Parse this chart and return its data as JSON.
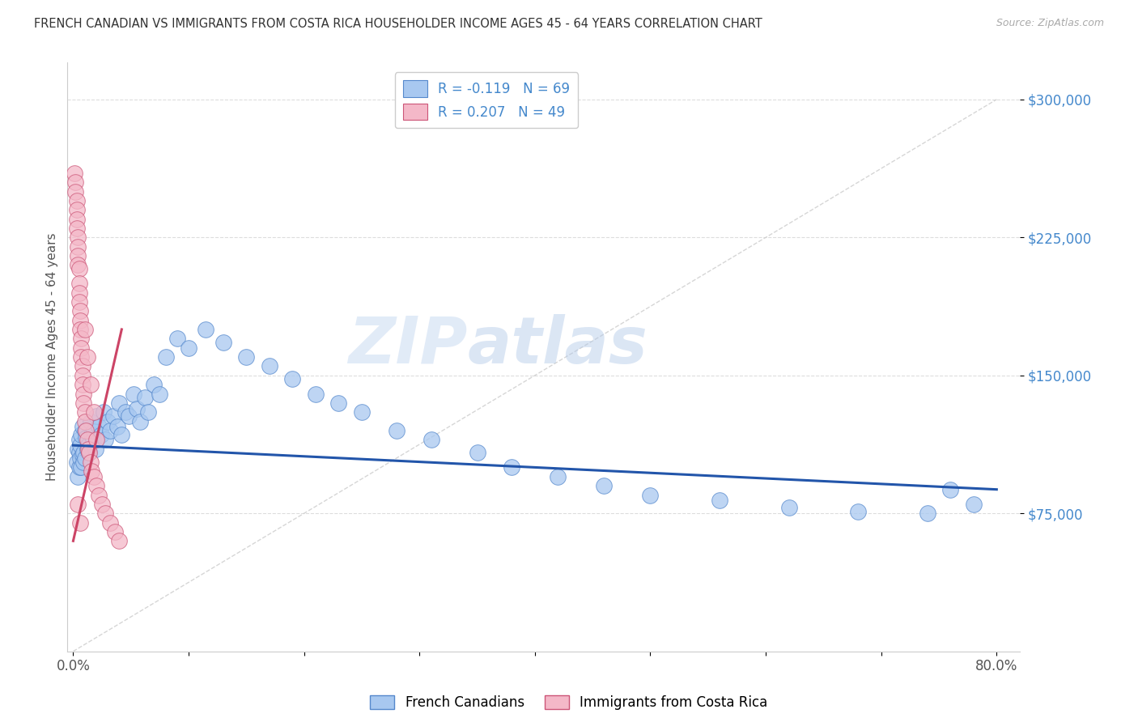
{
  "title": "FRENCH CANADIAN VS IMMIGRANTS FROM COSTA RICA HOUSEHOLDER INCOME AGES 45 - 64 YEARS CORRELATION CHART",
  "source": "Source: ZipAtlas.com",
  "ylabel": "Householder Income Ages 45 - 64 years",
  "y_tick_labels": [
    "$75,000",
    "$150,000",
    "$225,000",
    "$300,000"
  ],
  "y_tick_values": [
    75000,
    150000,
    225000,
    300000
  ],
  "legend_blue_r": "R = -0.119",
  "legend_blue_n": "N = 69",
  "legend_pink_r": "R = 0.207",
  "legend_pink_n": "N = 49",
  "legend_blue_label": "French Canadians",
  "legend_pink_label": "Immigrants from Costa Rica",
  "watermark_zip": "ZIP",
  "watermark_atlas": "atlas",
  "blue_color": "#a8c8f0",
  "pink_color": "#f4b8c8",
  "blue_edge_color": "#5588cc",
  "pink_edge_color": "#cc5577",
  "blue_line_color": "#2255aa",
  "pink_line_color": "#cc4466",
  "ref_line_color": "#cccccc",
  "axis_tick_color": "#4488cc",
  "title_color": "#333333",
  "blue_scatter_x": [
    0.003,
    0.004,
    0.004,
    0.005,
    0.005,
    0.005,
    0.006,
    0.006,
    0.007,
    0.007,
    0.008,
    0.008,
    0.009,
    0.009,
    0.01,
    0.01,
    0.011,
    0.012,
    0.013,
    0.014,
    0.015,
    0.016,
    0.017,
    0.018,
    0.019,
    0.02,
    0.022,
    0.024,
    0.026,
    0.028,
    0.03,
    0.032,
    0.035,
    0.038,
    0.04,
    0.042,
    0.045,
    0.048,
    0.052,
    0.055,
    0.058,
    0.062,
    0.065,
    0.07,
    0.075,
    0.08,
    0.09,
    0.1,
    0.115,
    0.13,
    0.15,
    0.17,
    0.19,
    0.21,
    0.23,
    0.25,
    0.28,
    0.31,
    0.35,
    0.38,
    0.42,
    0.46,
    0.5,
    0.56,
    0.62,
    0.68,
    0.74,
    0.76,
    0.78
  ],
  "blue_scatter_y": [
    103000,
    110000,
    95000,
    115000,
    100000,
    108000,
    112000,
    105000,
    118000,
    100000,
    122000,
    107000,
    108000,
    103000,
    120000,
    105000,
    116000,
    110000,
    112000,
    108000,
    125000,
    118000,
    115000,
    120000,
    110000,
    128000,
    122000,
    118000,
    130000,
    115000,
    125000,
    120000,
    128000,
    122000,
    135000,
    118000,
    130000,
    128000,
    140000,
    132000,
    125000,
    138000,
    130000,
    145000,
    140000,
    160000,
    170000,
    165000,
    175000,
    168000,
    160000,
    155000,
    148000,
    140000,
    135000,
    130000,
    120000,
    115000,
    108000,
    100000,
    95000,
    90000,
    85000,
    82000,
    78000,
    76000,
    75000,
    88000,
    80000
  ],
  "pink_scatter_x": [
    0.001,
    0.002,
    0.002,
    0.003,
    0.003,
    0.003,
    0.003,
    0.004,
    0.004,
    0.004,
    0.004,
    0.005,
    0.005,
    0.005,
    0.005,
    0.006,
    0.006,
    0.006,
    0.007,
    0.007,
    0.007,
    0.008,
    0.008,
    0.008,
    0.009,
    0.009,
    0.01,
    0.01,
    0.011,
    0.012,
    0.013,
    0.014,
    0.015,
    0.016,
    0.018,
    0.02,
    0.022,
    0.025,
    0.028,
    0.032,
    0.036,
    0.04,
    0.01,
    0.012,
    0.015,
    0.018,
    0.02,
    0.004,
    0.006
  ],
  "pink_scatter_y": [
    260000,
    255000,
    250000,
    245000,
    240000,
    235000,
    230000,
    225000,
    220000,
    215000,
    210000,
    208000,
    200000,
    195000,
    190000,
    185000,
    180000,
    175000,
    170000,
    165000,
    160000,
    155000,
    150000,
    145000,
    140000,
    135000,
    130000,
    125000,
    120000,
    115000,
    110000,
    108000,
    103000,
    98000,
    95000,
    90000,
    85000,
    80000,
    75000,
    70000,
    65000,
    60000,
    175000,
    160000,
    145000,
    130000,
    115000,
    80000,
    70000
  ],
  "blue_line_x": [
    0.0,
    0.8
  ],
  "blue_line_y": [
    112000,
    88000
  ],
  "pink_line_x": [
    0.0,
    0.042
  ],
  "pink_line_y": [
    60000,
    175000
  ],
  "ref_line_x": [
    0.0,
    0.8
  ],
  "ref_line_y": [
    0,
    300000
  ],
  "xlim": [
    -0.005,
    0.82
  ],
  "ylim": [
    0,
    320000
  ],
  "background_color": "#ffffff",
  "grid_color": "#dddddd"
}
